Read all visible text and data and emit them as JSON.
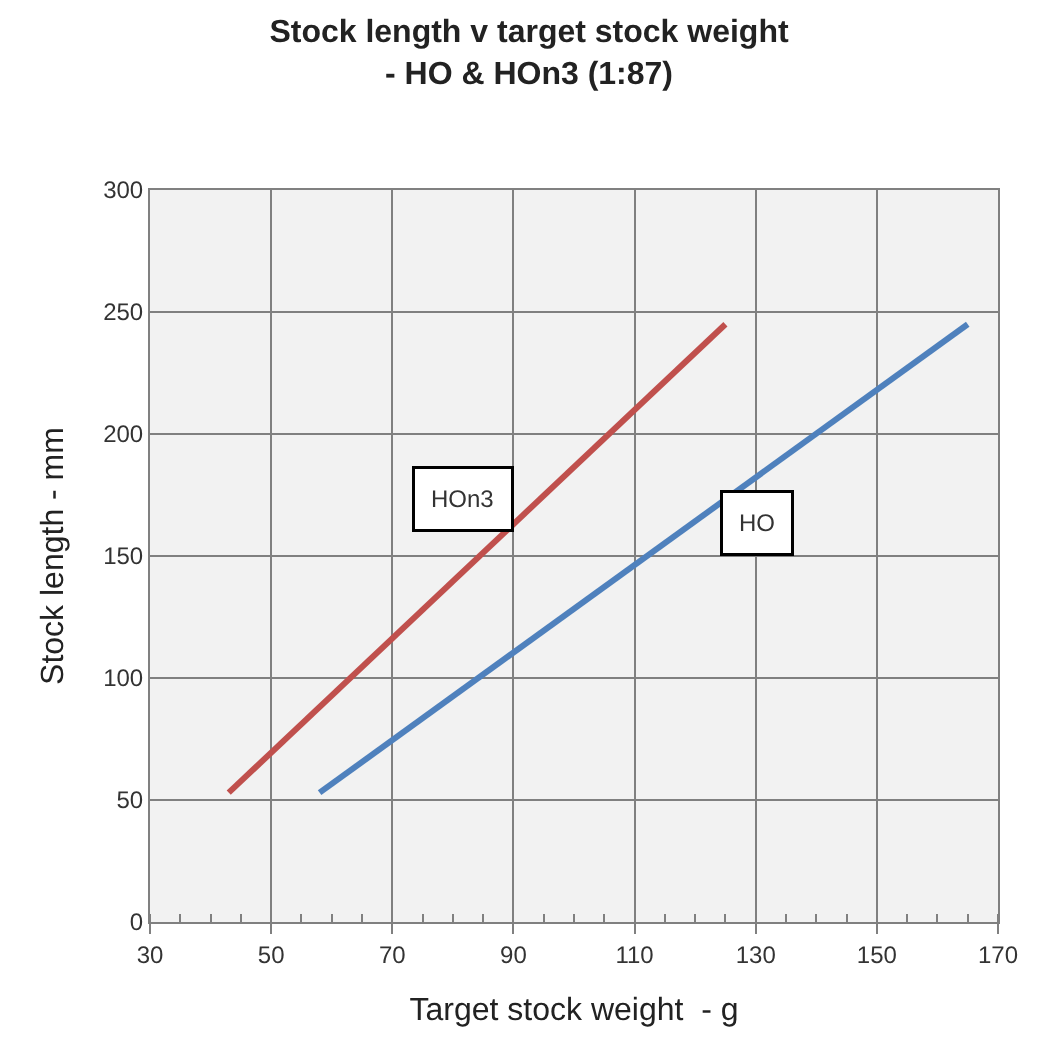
{
  "chart_data": {
    "type": "line",
    "title": "Stock length v target stock weight\n- HO & HOn3 (1:87)",
    "xlabel": "Target stock weight  - g",
    "ylabel": "Stock length - mm",
    "series": [
      {
        "name": "HOn3",
        "color": "#c0504d",
        "x": [
          43,
          125
        ],
        "values": [
          53,
          245
        ]
      },
      {
        "name": "HO",
        "color": "#4f81bd",
        "x": [
          58,
          165
        ],
        "values": [
          53,
          245
        ]
      }
    ],
    "xlim": [
      30,
      170
    ],
    "xticks": [
      30,
      50,
      70,
      90,
      110,
      130,
      150,
      170
    ],
    "ylim": [
      0,
      300
    ],
    "yticks": [
      0,
      50,
      100,
      150,
      200,
      250,
      300
    ],
    "grid": true,
    "marker": "none",
    "line_style": "solid",
    "legend": false
  }
}
